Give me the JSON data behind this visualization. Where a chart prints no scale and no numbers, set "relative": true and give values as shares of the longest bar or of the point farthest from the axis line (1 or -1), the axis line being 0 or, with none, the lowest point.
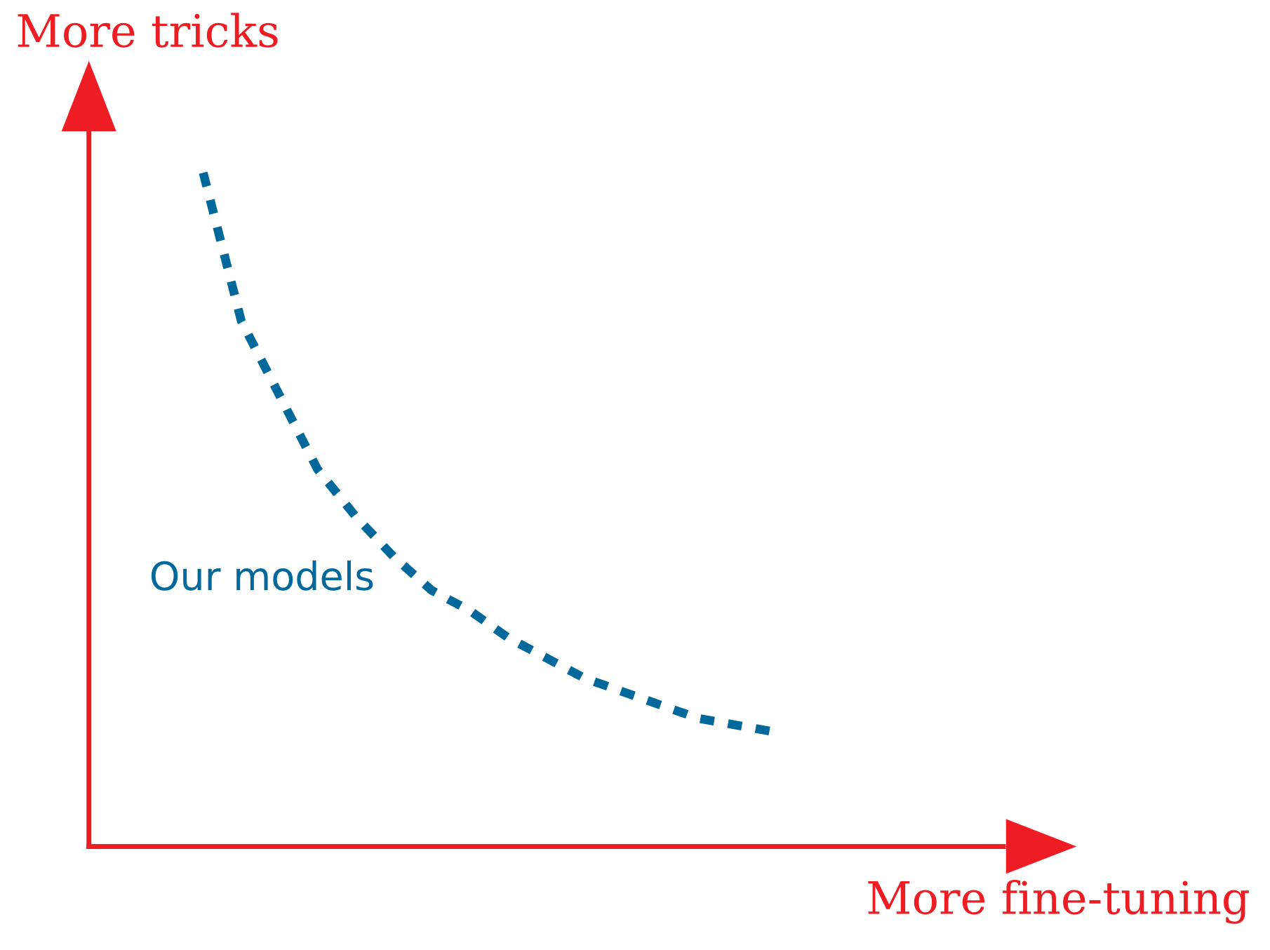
{
  "chart_data": {
    "type": "line",
    "relative": true,
    "xlabel": "More fine-tuning",
    "ylabel": "More tricks",
    "grid": false,
    "legend": false,
    "line_style": "dashed",
    "annotations": [
      "Our models"
    ],
    "categories": [
      null,
      null,
      null,
      null,
      null,
      null,
      null,
      null,
      null,
      null,
      null,
      null,
      null,
      null,
      null,
      null,
      null,
      null,
      null,
      null,
      null,
      null,
      null,
      null,
      null
    ],
    "series": [
      {
        "color": "#00689a",
        "values": [
          null,
          null,
          null,
          1.0,
          0.78,
          0.67,
          0.56,
          0.49,
          0.43,
          0.38,
          0.35,
          0.31,
          0.28,
          0.25,
          0.23,
          0.21,
          0.19,
          0.18,
          0.17,
          null,
          null,
          null,
          null,
          null,
          null
        ]
      }
    ]
  }
}
